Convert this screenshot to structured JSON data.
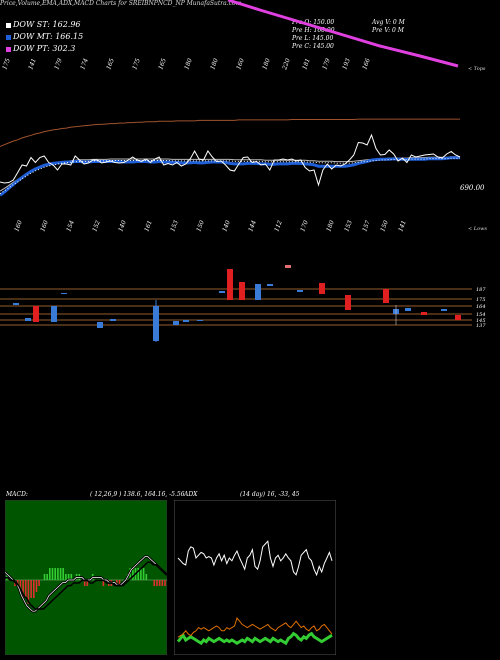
{
  "title": "Price,Volume,EMA,ADX,MACD Charts for SREIBNPNCD_NP MunafaSutra.com",
  "legend": [
    {
      "label": "DOW ST: 162.96",
      "color": "#ffffff"
    },
    {
      "label": "DOW MT: 166.15",
      "color": "#1f5fd8"
    },
    {
      "label": "DOW PT: 302.3",
      "color": "#e040e0"
    }
  ],
  "ohlc": {
    "open": "Pre   O: 150.00",
    "high": "Pre   H: 160.00",
    "low": "Pre   L: 145.00",
    "close": "Pre   C: 145.00",
    "avg_vol": "Avg V: 0   M",
    "pre_vol": "Pre   V: 0   M"
  },
  "price_panel": {
    "top_ticks": [
      "175",
      "141",
      "179",
      "174",
      "165",
      "175",
      "165",
      "180",
      "180",
      "160",
      "180",
      "220",
      "181",
      "179",
      "193",
      "166"
    ],
    "bottom_ticks": [
      "160",
      "160",
      "154",
      "152",
      "140",
      "161",
      "153",
      "150",
      "140",
      "144",
      "112",
      "170",
      "180",
      "153",
      "157",
      "150",
      "141"
    ],
    "right_top_label": "< Tops",
    "right_bottom_label": "< Lows",
    "price_label": "690.00",
    "close_line": [
      126,
      124,
      125,
      130,
      145,
      160,
      158,
      175,
      165,
      175,
      178,
      165,
      160,
      150,
      162,
      162,
      160,
      178,
      170,
      162,
      164,
      170,
      170,
      164,
      166,
      168,
      165,
      164,
      165,
      170,
      176,
      170,
      167,
      172,
      165,
      172,
      176,
      160,
      163,
      160,
      165,
      158,
      162,
      172,
      188,
      172,
      170,
      188,
      176,
      167,
      168,
      160,
      150,
      148,
      162,
      175,
      176,
      165,
      167,
      160,
      162,
      150,
      170,
      170,
      172,
      170,
      172,
      168,
      170,
      155,
      148,
      150,
      120,
      150,
      162,
      152,
      160,
      158,
      162,
      170,
      180,
      205,
      204,
      200,
      220,
      193,
      180,
      181,
      190,
      182,
      168,
      174,
      165,
      180,
      176,
      178,
      180,
      181,
      182,
      176,
      174,
      182,
      187,
      180,
      176
    ],
    "ema_short": [
      95,
      102,
      110,
      118,
      126,
      133,
      140,
      146,
      151,
      155,
      159,
      161,
      163,
      164,
      165,
      166,
      166,
      167,
      167,
      166,
      166,
      167,
      167,
      167,
      167,
      167,
      167,
      167,
      166,
      166,
      166,
      167,
      167,
      167,
      166,
      166,
      167,
      166,
      166,
      165,
      165,
      164,
      164,
      164,
      165,
      164,
      164,
      165,
      166,
      166,
      166,
      165,
      163,
      162,
      162,
      162,
      163,
      163,
      163,
      162,
      162,
      161,
      161,
      162,
      162,
      162,
      163,
      163,
      163,
      162,
      161,
      160,
      157,
      157,
      157,
      157,
      157,
      157,
      157,
      158,
      160,
      163,
      165,
      167,
      170,
      171,
      172,
      172,
      172,
      173,
      172,
      172,
      171,
      172,
      172,
      172,
      172,
      173,
      173,
      173,
      173,
      174,
      175,
      175,
      175
    ],
    "ema_mid": [
      93,
      99,
      106,
      113,
      119,
      126,
      132,
      138,
      143,
      147,
      151,
      154,
      156,
      158,
      160,
      161,
      162,
      163,
      164,
      164,
      164,
      165,
      165,
      165,
      165,
      166,
      166,
      166,
      166,
      166,
      166,
      166,
      166,
      166,
      166,
      166,
      166,
      166,
      166,
      165,
      165,
      165,
      165,
      165,
      165,
      165,
      165,
      165,
      165,
      165,
      165,
      165,
      165,
      164,
      164,
      164,
      164,
      164,
      164,
      164,
      163,
      163,
      163,
      163,
      163,
      163,
      163,
      163,
      163,
      163,
      162,
      162,
      161,
      161,
      161,
      161,
      160,
      160,
      160,
      160,
      161,
      162,
      163,
      164,
      165,
      166,
      167,
      167,
      168,
      168,
      168,
      168,
      168,
      169,
      169,
      169,
      169,
      170,
      170,
      170,
      170,
      170,
      171,
      171,
      171
    ],
    "ema_long": [
      85,
      89,
      93,
      97,
      100,
      104,
      107,
      110,
      113,
      115,
      118,
      120,
      122,
      123,
      125,
      126,
      128,
      129,
      130,
      131,
      132,
      133,
      134,
      134,
      135,
      136,
      136,
      137,
      137,
      138,
      138,
      139,
      139,
      140,
      140,
      140,
      141,
      141,
      141,
      141,
      142,
      142,
      142,
      142,
      142,
      143,
      143,
      143,
      143,
      143,
      143,
      143,
      143,
      143,
      144,
      144,
      144,
      144,
      144,
      144,
      144,
      144,
      144,
      144,
      144,
      144,
      145,
      145,
      145,
      145,
      145,
      145,
      145,
      145,
      145,
      145,
      145,
      145,
      145,
      145,
      145,
      146,
      146,
      146,
      146,
      146,
      146,
      146,
      146,
      146,
      146,
      146,
      146,
      146,
      146,
      146,
      146,
      146,
      146,
      146,
      146,
      146,
      146,
      146,
      146
    ],
    "support_levels": [
      "187",
      "175",
      "164",
      "154",
      "145",
      "137"
    ]
  },
  "macd_panel": {
    "label": "MACD:",
    "values": "( 12,26,9 ) 138.6, 164.16, -5.56",
    "macd": [
      3,
      2,
      1,
      0,
      -1,
      -3,
      -6,
      -8,
      -10,
      -11,
      -12,
      -12,
      -11,
      -10,
      -9,
      -8,
      -6,
      -5,
      -4,
      -3,
      -2,
      -1,
      -1,
      0,
      0,
      0,
      1,
      1,
      1,
      0,
      0,
      0,
      1,
      1,
      1,
      1,
      0,
      0,
      -1,
      -1,
      -1,
      -2,
      -2,
      -1,
      0,
      2,
      4,
      5,
      6,
      7,
      8,
      9,
      9,
      8,
      7,
      6,
      5,
      4,
      3,
      2
    ],
    "signal": [
      2,
      2,
      1,
      1,
      0,
      -1,
      -3,
      -5,
      -6,
      -8,
      -9,
      -10,
      -10,
      -10,
      -10,
      -9,
      -8,
      -7,
      -6,
      -5,
      -4,
      -3,
      -2,
      -1,
      -1,
      0,
      0,
      0,
      1,
      1,
      1,
      0,
      0,
      1,
      1,
      1,
      1,
      0,
      0,
      0,
      -1,
      -1,
      -1,
      -1,
      0,
      1,
      2,
      3,
      4,
      5,
      6,
      7,
      8,
      8,
      7,
      7,
      6,
      5,
      4,
      3
    ],
    "hist": [
      1,
      0,
      0,
      -1,
      -1,
      -2,
      -3,
      -3,
      -4,
      -3,
      -3,
      -2,
      -1,
      0,
      1,
      1,
      2,
      2,
      2,
      2,
      2,
      2,
      1,
      1,
      1,
      0,
      1,
      1,
      0,
      -1,
      -1,
      0,
      1,
      0,
      0,
      0,
      -1,
      0,
      -1,
      -1,
      0,
      -1,
      -1,
      0,
      0,
      1,
      2,
      2,
      2,
      2,
      2,
      2,
      1,
      0,
      0,
      -1,
      -1,
      -1,
      -1,
      -1
    ]
  },
  "adx_panel": {
    "label": "ADX",
    "values": "(14 day) 16, -33, 45",
    "adx": [
      30,
      28,
      26,
      25,
      35,
      38,
      37,
      30,
      32,
      34,
      33,
      30,
      31,
      30,
      25,
      30,
      33,
      28,
      32,
      26,
      30,
      28,
      32,
      35,
      30,
      26,
      22,
      30,
      32,
      36,
      24,
      22,
      28,
      38,
      40,
      42,
      30,
      24,
      30,
      32,
      28,
      30,
      33,
      30,
      28,
      20,
      18,
      24,
      32,
      34,
      36,
      30,
      28,
      22,
      18,
      24,
      20,
      26,
      30,
      34,
      28
    ],
    "plus_di": [
      8,
      9,
      10,
      12,
      10,
      9,
      11,
      12,
      14,
      13,
      14,
      13,
      12,
      13,
      14,
      15,
      14,
      12,
      12,
      14,
      13,
      14,
      15,
      20,
      18,
      16,
      15,
      14,
      15,
      16,
      15,
      14,
      13,
      14,
      15,
      16,
      14,
      13,
      12,
      14,
      15,
      16,
      17,
      15,
      14,
      16,
      18,
      16,
      14,
      15,
      13,
      12,
      14,
      15,
      12,
      13,
      15,
      16,
      14,
      12,
      10
    ],
    "minus_di": [
      4,
      6,
      8,
      5,
      6,
      7,
      6,
      5,
      4,
      3,
      5,
      4,
      6,
      5,
      4,
      5,
      6,
      5,
      4,
      5,
      4,
      5,
      4,
      3,
      4,
      5,
      4,
      6,
      5,
      4,
      6,
      5,
      4,
      5,
      6,
      5,
      4,
      6,
      5,
      4,
      5,
      4,
      3,
      6,
      7,
      9,
      8,
      6,
      5,
      7,
      6,
      8,
      9,
      7,
      6,
      5,
      4,
      5,
      6,
      7,
      8
    ]
  }
}
